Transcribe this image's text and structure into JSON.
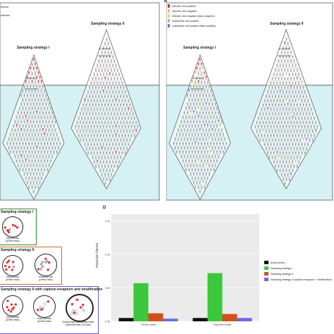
{
  "panel_a": {
    "legend": [
      "fected",
      "nfected"
    ],
    "strategy1": {
      "title": "Sampling strategy I",
      "symptomatic": "symptomatic",
      "asymptomatic": "asymptomatic"
    },
    "strategy2": {
      "title": "Sampling strategy II",
      "symptomatic": "symptomatic",
      "asymptomatic": "asymptomatic"
    }
  },
  "panel_b": {
    "letter": "B",
    "legend": [
      {
        "label": "Infected, test positive",
        "color": "#d62728"
      },
      {
        "label": "Infected, test negative",
        "color": "#e8b4b8"
      },
      {
        "label": "Infected, test negative (false negative)",
        "color": "#f2d64b"
      },
      {
        "label": "Uninfected, test positive",
        "color": "#b0b0b0"
      },
      {
        "label": "Uninfected, test positive (false positive)",
        "color": "#8e63c9"
      }
    ],
    "strategy1": {
      "title": "Sampling strategy I",
      "symptomatic": "symptomatic",
      "asymptomatic": "asymptomatic"
    },
    "strategy2": {
      "title": "Sampling strategy II",
      "symptomatic": "symptomatic",
      "asymptomatic": "asymptomatic"
    }
  },
  "panel_c": {
    "box1": {
      "title": "Sampling strategy I",
      "c1": "Symptomatic\n(perfect tests)",
      "color": "#2e8b2e"
    },
    "box2": {
      "title": "Sampling strategy II",
      "c1": "Symptomatic\n(perfect tests)",
      "c2": "Asymptomatic\n(perfect tests)",
      "color": "#d2691e"
    },
    "box3": {
      "title": "Sampling strategy II with capture-recapture and stratification",
      "c1": "Symptomatic\n(perfect tests)",
      "c2": "Asymptomatic\n(perfect tests)",
      "c3": "Symptomatic and asymptomatic\n(imperfect tests, no-tests)",
      "color": "#5b5bd6"
    }
  },
  "panel_d": {
    "letter": "D",
    "colors": {
      "actual": "#111111",
      "s1": "#3cc83c",
      "s2": "#d2501e",
      "s3": "#6a6ae8"
    }
  },
  "chart_data": {
    "type": "bar",
    "ylabel": "Proportion infected",
    "categories": [
      "Perfect tests",
      "Imperfect tests"
    ],
    "ylim": [
      0,
      0.16
    ],
    "yticks": [
      "0.00",
      "0.05",
      "0.10",
      "0.15"
    ],
    "series": [
      {
        "name": "Actual (truth)",
        "values": [
          0.005,
          0.005
        ]
      },
      {
        "name": "Sampling strategy I",
        "values": [
          0.057,
          0.072
        ]
      },
      {
        "name": "Sampling strategy II",
        "values": [
          0.012,
          0.011
        ]
      },
      {
        "name": "Sampling strategy II (capture-recapture + stratification)",
        "values": [
          0.004,
          0.005
        ]
      }
    ],
    "legend_position": "right"
  }
}
